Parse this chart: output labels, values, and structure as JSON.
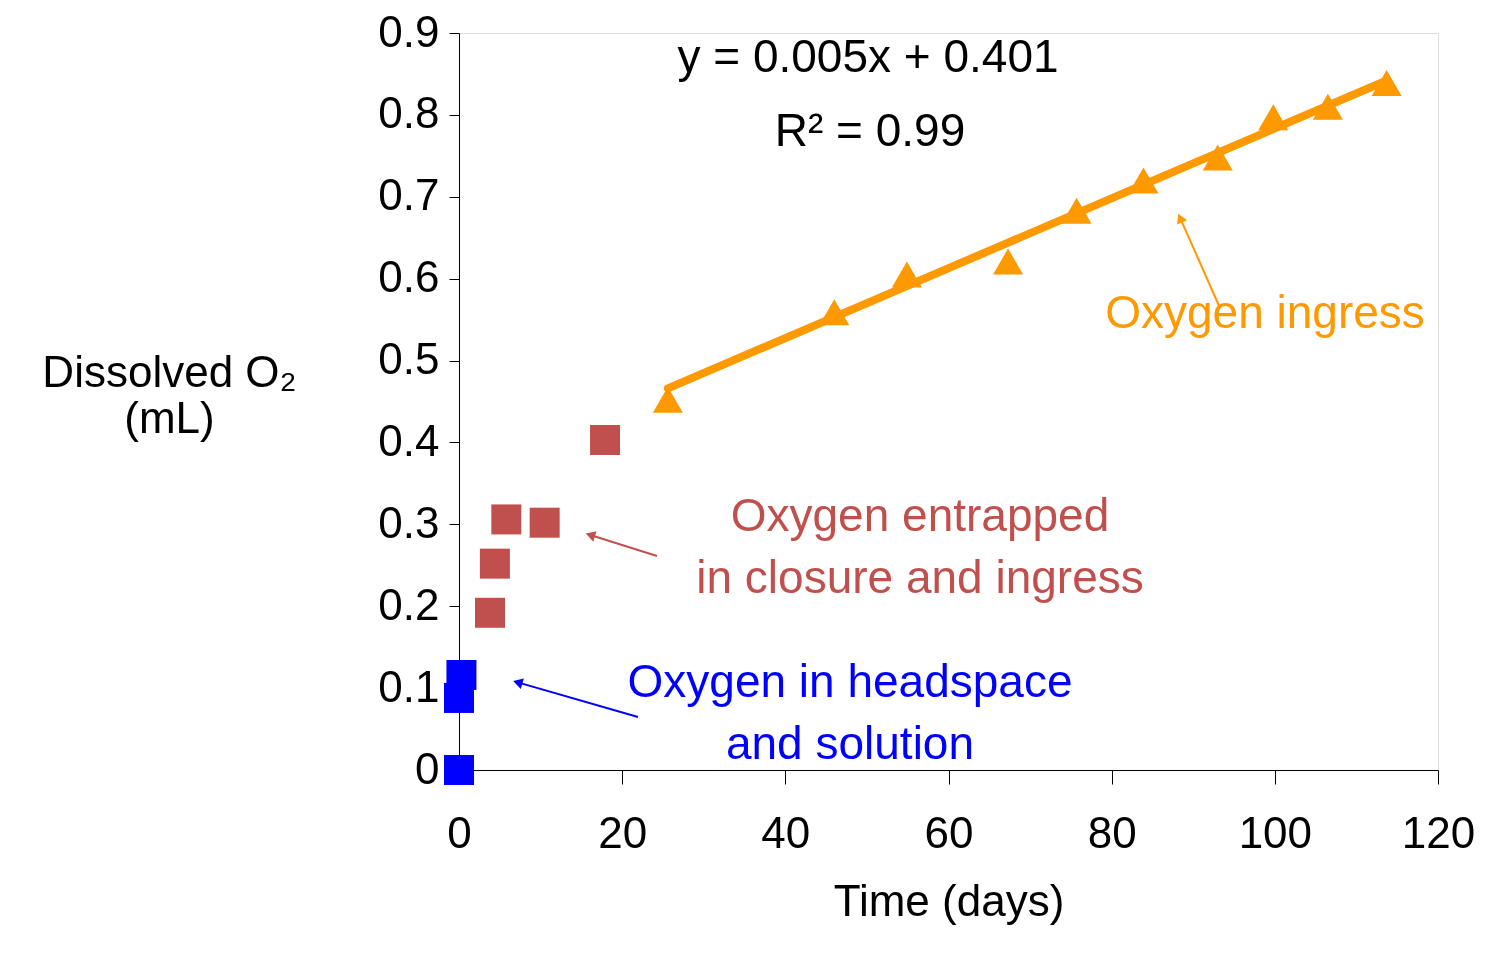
{
  "chart_data": {
    "type": "scatter",
    "xlabel": "Time (days)",
    "ylabel": "Dissolved O₂ (mL)",
    "xlim": [
      0,
      120
    ],
    "xticks": [
      0,
      20,
      40,
      60,
      80,
      100,
      120
    ],
    "ylim": [
      0,
      0.9
    ],
    "yticks": [
      0,
      0.1,
      0.2,
      0.3,
      0.4,
      0.5,
      0.6,
      0.7,
      0.8,
      0.9
    ],
    "grid": false,
    "series": [
      {
        "color": "#0000ff",
        "marker": "square",
        "x": [
          0,
          0,
          0.3
        ],
        "values": [
          0,
          0.088,
          0.116
        ]
      },
      {
        "color": "#c0504d",
        "marker": "square",
        "x": [
          3.8,
          4.4,
          5.8,
          10.5,
          17.9
        ],
        "values": [
          0.192,
          0.252,
          0.306,
          0.302,
          0.403
        ]
      },
      {
        "color": "#ff9900",
        "marker": "triangle",
        "x": [
          25.6,
          46,
          54.9,
          67.3,
          75.7,
          83.9,
          93,
          99.8,
          106.5,
          113.7
        ],
        "values": [
          0.452,
          0.559,
          0.605,
          0.621,
          0.683,
          0.72,
          0.748,
          0.797,
          0.81,
          0.839
        ]
      },
      {
        "type": "line",
        "color": "#ff9900",
        "marker": "none",
        "line_style": "solid",
        "x": [
          25.6,
          113.7
        ],
        "values": [
          0.466,
          0.842
        ]
      }
    ],
    "annotations": [
      "y = 0.005x + 0.401",
      "R² = 0.99",
      {
        "text": "Oxygen in headspace\nand solution",
        "x": 7.2,
        "y": 0.107
      },
      {
        "text": "Oxygen entrapped\nin closure and ingress",
        "x": 16.1,
        "y": 0.287
      },
      {
        "text": "Oxygen ingress",
        "x": 88.4,
        "y": 0.674
      }
    ]
  }
}
